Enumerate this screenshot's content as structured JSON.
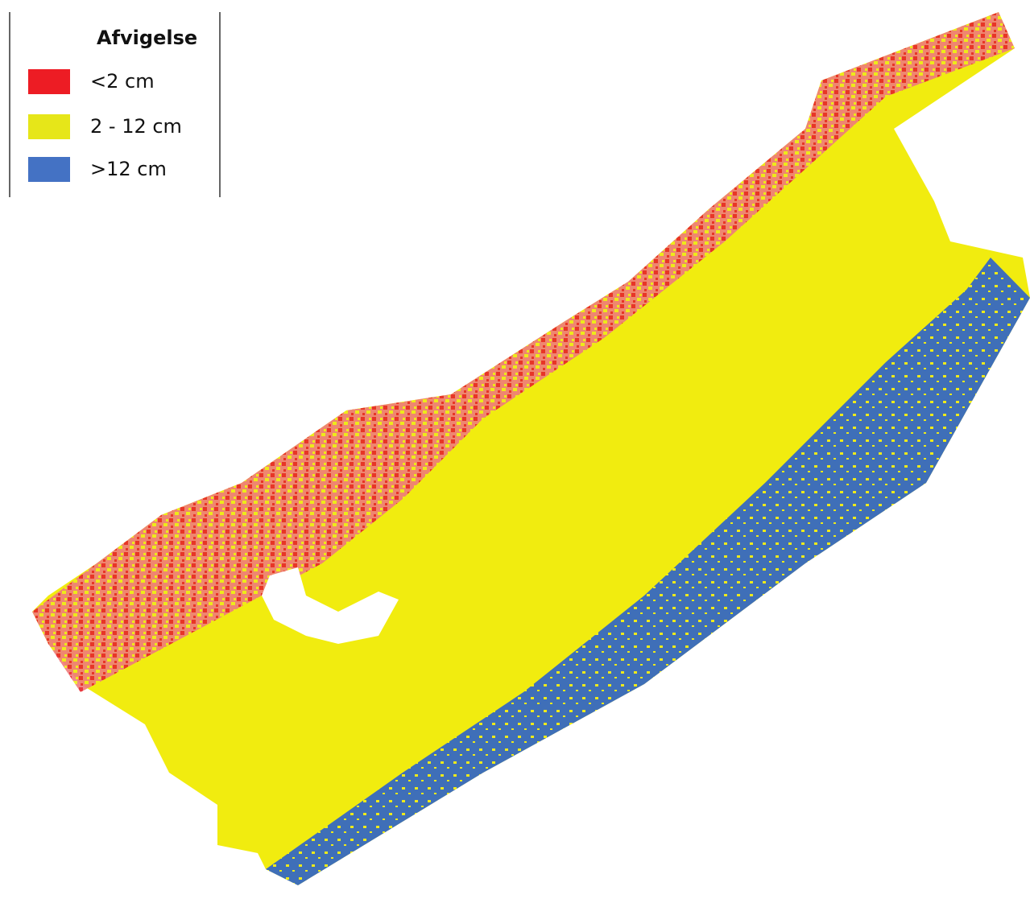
{
  "legend": {
    "title": "Afvigelse",
    "items": [
      {
        "label": "<2 cm",
        "color": "#ed1c24"
      },
      {
        "label": "2 - 12 cm",
        "color": "#e6e619"
      },
      {
        "label": ">12 cm",
        "color": "#4472c4"
      }
    ]
  }
}
